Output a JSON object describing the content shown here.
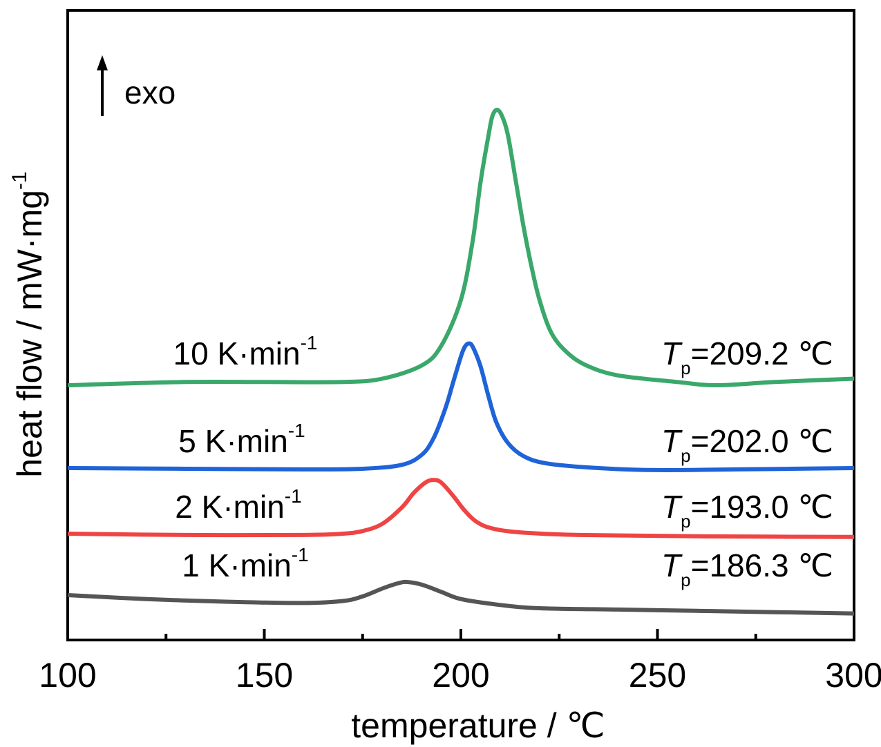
{
  "chart_data": {
    "type": "line",
    "xlabel": "temperature / ℃",
    "ylabel": "heat flow / mW·mg",
    "ylabel_sup": "-1",
    "xlim": [
      100,
      300
    ],
    "x_ticks": [
      100,
      150,
      200,
      250,
      300
    ],
    "x_minor_ticks": [
      125,
      175,
      225,
      275
    ],
    "y_ticks_shown": false,
    "grid": false,
    "annotation": {
      "arrow": "up",
      "text": "exo"
    },
    "series": [
      {
        "rate_value": "1",
        "rate_unit": " K·min",
        "rate_sup": "-1",
        "tp_symbol": "T",
        "tp_sub": "p",
        "tp_text": "=186.3 ℃",
        "color": "#555555",
        "peak_x": 186.3,
        "points": [
          [
            100,
            0.0
          ],
          [
            120,
            -0.06
          ],
          [
            140,
            -0.1
          ],
          [
            160,
            -0.12
          ],
          [
            170,
            -0.09
          ],
          [
            175,
            -0.02
          ],
          [
            180,
            0.1
          ],
          [
            184,
            0.18
          ],
          [
            186.3,
            0.2
          ],
          [
            190,
            0.16
          ],
          [
            195,
            0.05
          ],
          [
            200,
            -0.06
          ],
          [
            210,
            -0.15
          ],
          [
            220,
            -0.2
          ],
          [
            240,
            -0.22
          ],
          [
            260,
            -0.24
          ],
          [
            280,
            -0.26
          ],
          [
            300,
            -0.28
          ]
        ]
      },
      {
        "rate_value": "2",
        "rate_unit": " K·min",
        "rate_sup": "-1",
        "tp_symbol": "T",
        "tp_sub": "p",
        "tp_text": "=193.0 ℃",
        "color": "#ef4444",
        "peak_x": 193.0,
        "points": [
          [
            100,
            0.0
          ],
          [
            130,
            -0.02
          ],
          [
            160,
            -0.02
          ],
          [
            170,
            0.0
          ],
          [
            175,
            0.04
          ],
          [
            180,
            0.15
          ],
          [
            185,
            0.4
          ],
          [
            188,
            0.62
          ],
          [
            191,
            0.78
          ],
          [
            193,
            0.82
          ],
          [
            195,
            0.78
          ],
          [
            198,
            0.58
          ],
          [
            201,
            0.35
          ],
          [
            204,
            0.18
          ],
          [
            208,
            0.08
          ],
          [
            215,
            0.02
          ],
          [
            230,
            -0.02
          ],
          [
            260,
            -0.04
          ],
          [
            300,
            -0.05
          ]
        ]
      },
      {
        "rate_value": "5",
        "rate_unit": " K·min",
        "rate_sup": "-1",
        "tp_symbol": "T",
        "tp_sub": "p",
        "tp_text": "=202.0 ℃",
        "color": "#1f63d8",
        "peak_x": 202.0,
        "points": [
          [
            100,
            0.0
          ],
          [
            130,
            -0.01
          ],
          [
            160,
            -0.02
          ],
          [
            175,
            -0.01
          ],
          [
            185,
            0.05
          ],
          [
            190,
            0.2
          ],
          [
            193,
            0.45
          ],
          [
            196,
            0.9
          ],
          [
            198,
            1.3
          ],
          [
            200,
            1.7
          ],
          [
            201,
            1.85
          ],
          [
            202,
            1.9
          ],
          [
            203,
            1.85
          ],
          [
            205,
            1.55
          ],
          [
            207,
            1.1
          ],
          [
            209,
            0.7
          ],
          [
            212,
            0.38
          ],
          [
            216,
            0.18
          ],
          [
            222,
            0.07
          ],
          [
            235,
            0.0
          ],
          [
            250,
            -0.03
          ],
          [
            270,
            -0.02
          ],
          [
            300,
            0.0
          ]
        ]
      },
      {
        "rate_value": "10",
        "rate_unit": " K·min",
        "rate_sup": "-1",
        "tp_symbol": "T",
        "tp_sub": "p",
        "tp_text": "=209.2 ℃",
        "color": "#3aa86a",
        "peak_x": 209.2,
        "points": [
          [
            100,
            0.0
          ],
          [
            130,
            0.05
          ],
          [
            150,
            0.05
          ],
          [
            170,
            0.05
          ],
          [
            180,
            0.1
          ],
          [
            190,
            0.3
          ],
          [
            195,
            0.6
          ],
          [
            200,
            1.3
          ],
          [
            203,
            2.2
          ],
          [
            205,
            3.1
          ],
          [
            207,
            3.8
          ],
          [
            208,
            4.1
          ],
          [
            209.2,
            4.2
          ],
          [
            210.5,
            4.1
          ],
          [
            212,
            3.8
          ],
          [
            214,
            3.1
          ],
          [
            216,
            2.4
          ],
          [
            218,
            1.8
          ],
          [
            220,
            1.3
          ],
          [
            223,
            0.8
          ],
          [
            227,
            0.5
          ],
          [
            232,
            0.3
          ],
          [
            240,
            0.15
          ],
          [
            255,
            0.05
          ],
          [
            265,
            0.0
          ],
          [
            280,
            0.05
          ],
          [
            300,
            0.1
          ]
        ]
      }
    ]
  }
}
